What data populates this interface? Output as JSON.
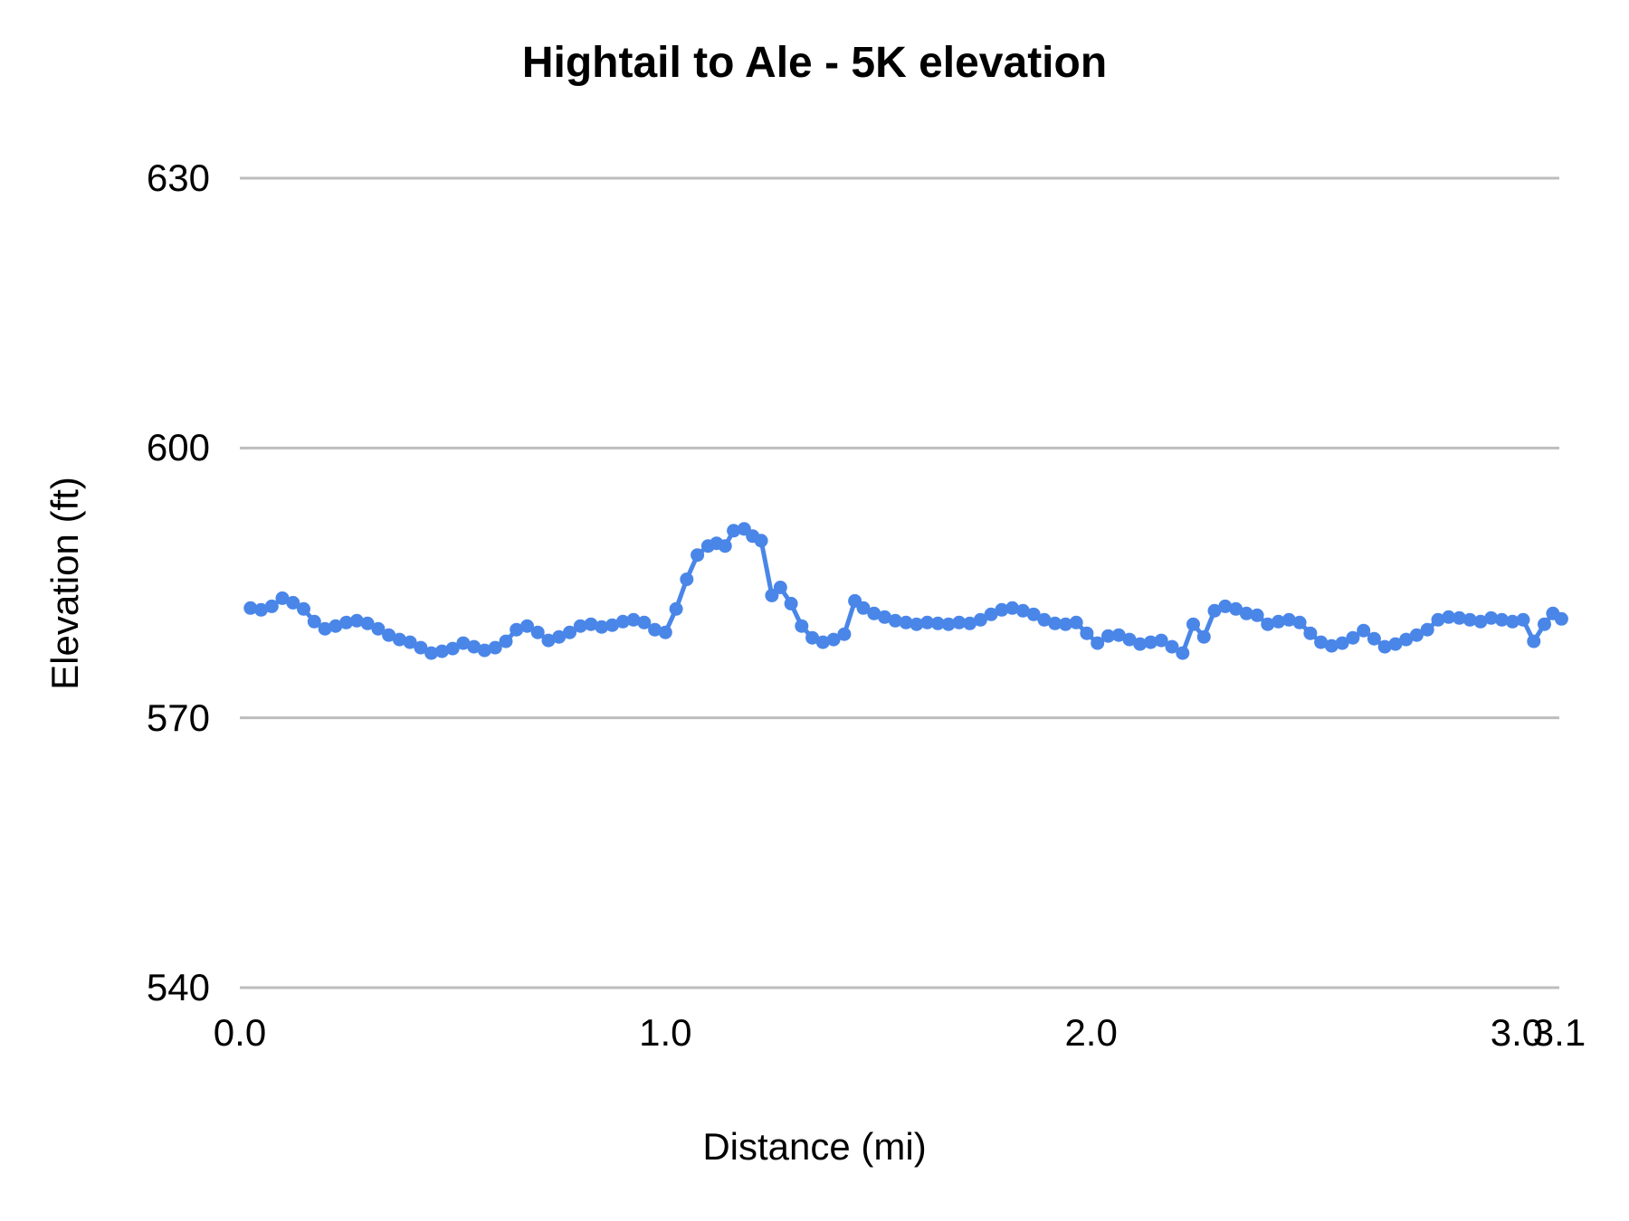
{
  "title": "Hightail to Ale - 5K elevation",
  "colors": {
    "series_blue": "#4a86e8",
    "gridline": "#bdbdbd",
    "text": "#000000",
    "background": "#ffffff"
  },
  "chart_data": {
    "type": "line",
    "title": "Hightail to Ale - 5K elevation",
    "xlabel": "Distance (mi)",
    "ylabel": "Elevation (ft)",
    "xlim": [
      0,
      3.1
    ],
    "ylim": [
      540,
      630
    ],
    "grid": true,
    "legend": false,
    "yticks": [
      {
        "value": 630,
        "label": "630"
      },
      {
        "value": 600,
        "label": "600"
      },
      {
        "value": 570,
        "label": "570"
      },
      {
        "value": 540,
        "label": "540"
      }
    ],
    "xticks": [
      {
        "value": 0.0,
        "label": "0.0"
      },
      {
        "value": 1.0,
        "label": "1.0"
      },
      {
        "value": 2.0,
        "label": "2.0"
      },
      {
        "value": 3.0,
        "label": "3.0"
      },
      {
        "value": 3.1,
        "label": "3.1"
      }
    ],
    "series": [
      {
        "name": "elevation",
        "color": "#4a86e8",
        "marker": "circle",
        "marker_radius": 7.5,
        "line_width": 5,
        "points": [
          [
            0.025,
            582.2
          ],
          [
            0.05,
            582.0
          ],
          [
            0.075,
            582.4
          ],
          [
            0.1,
            583.3
          ],
          [
            0.125,
            582.8
          ],
          [
            0.15,
            582.1
          ],
          [
            0.175,
            580.7
          ],
          [
            0.2,
            579.9
          ],
          [
            0.225,
            580.2
          ],
          [
            0.25,
            580.6
          ],
          [
            0.275,
            580.8
          ],
          [
            0.3,
            580.5
          ],
          [
            0.325,
            579.9
          ],
          [
            0.35,
            579.2
          ],
          [
            0.375,
            578.7
          ],
          [
            0.4,
            578.4
          ],
          [
            0.425,
            577.8
          ],
          [
            0.45,
            577.2
          ],
          [
            0.475,
            577.4
          ],
          [
            0.5,
            577.7
          ],
          [
            0.525,
            578.3
          ],
          [
            0.55,
            577.9
          ],
          [
            0.575,
            577.5
          ],
          [
            0.6,
            577.8
          ],
          [
            0.625,
            578.5
          ],
          [
            0.65,
            579.8
          ],
          [
            0.675,
            580.2
          ],
          [
            0.7,
            579.5
          ],
          [
            0.725,
            578.6
          ],
          [
            0.75,
            579.0
          ],
          [
            0.775,
            579.5
          ],
          [
            0.8,
            580.2
          ],
          [
            0.825,
            580.4
          ],
          [
            0.85,
            580.1
          ],
          [
            0.875,
            580.3
          ],
          [
            0.9,
            580.7
          ],
          [
            0.925,
            580.9
          ],
          [
            0.95,
            580.6
          ],
          [
            0.975,
            579.8
          ],
          [
            1.0,
            579.5
          ],
          [
            1.025,
            582.1
          ],
          [
            1.05,
            585.4
          ],
          [
            1.075,
            588.1
          ],
          [
            1.1,
            589.1
          ],
          [
            1.12,
            589.4
          ],
          [
            1.14,
            589.1
          ],
          [
            1.16,
            590.8
          ],
          [
            1.185,
            591.0
          ],
          [
            1.205,
            590.2
          ],
          [
            1.225,
            589.7
          ],
          [
            1.25,
            583.6
          ],
          [
            1.27,
            584.5
          ],
          [
            1.295,
            582.7
          ],
          [
            1.32,
            580.2
          ],
          [
            1.345,
            578.9
          ],
          [
            1.37,
            578.4
          ],
          [
            1.395,
            578.7
          ],
          [
            1.42,
            579.3
          ],
          [
            1.445,
            583.0
          ],
          [
            1.465,
            582.2
          ],
          [
            1.49,
            581.6
          ],
          [
            1.515,
            581.2
          ],
          [
            1.54,
            580.8
          ],
          [
            1.565,
            580.6
          ],
          [
            1.59,
            580.4
          ],
          [
            1.615,
            580.6
          ],
          [
            1.64,
            580.5
          ],
          [
            1.665,
            580.4
          ],
          [
            1.69,
            580.6
          ],
          [
            1.715,
            580.5
          ],
          [
            1.74,
            580.9
          ],
          [
            1.765,
            581.5
          ],
          [
            1.79,
            582.0
          ],
          [
            1.815,
            582.2
          ],
          [
            1.84,
            581.9
          ],
          [
            1.865,
            581.5
          ],
          [
            1.89,
            580.9
          ],
          [
            1.915,
            580.5
          ],
          [
            1.94,
            580.4
          ],
          [
            1.965,
            580.6
          ],
          [
            1.99,
            579.4
          ],
          [
            2.015,
            578.3
          ],
          [
            2.04,
            579.1
          ],
          [
            2.065,
            579.2
          ],
          [
            2.09,
            578.7
          ],
          [
            2.115,
            578.2
          ],
          [
            2.14,
            578.4
          ],
          [
            2.165,
            578.6
          ],
          [
            2.19,
            577.9
          ],
          [
            2.215,
            577.2
          ],
          [
            2.24,
            580.4
          ],
          [
            2.265,
            579.0
          ],
          [
            2.29,
            581.9
          ],
          [
            2.315,
            582.4
          ],
          [
            2.34,
            582.1
          ],
          [
            2.365,
            581.6
          ],
          [
            2.39,
            581.4
          ],
          [
            2.415,
            580.4
          ],
          [
            2.44,
            580.7
          ],
          [
            2.465,
            580.9
          ],
          [
            2.49,
            580.6
          ],
          [
            2.515,
            579.4
          ],
          [
            2.54,
            578.4
          ],
          [
            2.565,
            578.0
          ],
          [
            2.59,
            578.3
          ],
          [
            2.615,
            578.9
          ],
          [
            2.64,
            579.7
          ],
          [
            2.665,
            578.8
          ],
          [
            2.69,
            577.9
          ],
          [
            2.715,
            578.2
          ],
          [
            2.74,
            578.7
          ],
          [
            2.765,
            579.2
          ],
          [
            2.79,
            579.8
          ],
          [
            2.815,
            580.9
          ],
          [
            2.84,
            581.2
          ],
          [
            2.865,
            581.1
          ],
          [
            2.89,
            580.9
          ],
          [
            2.915,
            580.7
          ],
          [
            2.94,
            581.1
          ],
          [
            2.965,
            580.9
          ],
          [
            2.99,
            580.7
          ],
          [
            3.015,
            580.9
          ],
          [
            3.04,
            578.5
          ],
          [
            3.065,
            580.4
          ],
          [
            3.085,
            581.6
          ],
          [
            3.105,
            581.0
          ]
        ]
      }
    ]
  }
}
